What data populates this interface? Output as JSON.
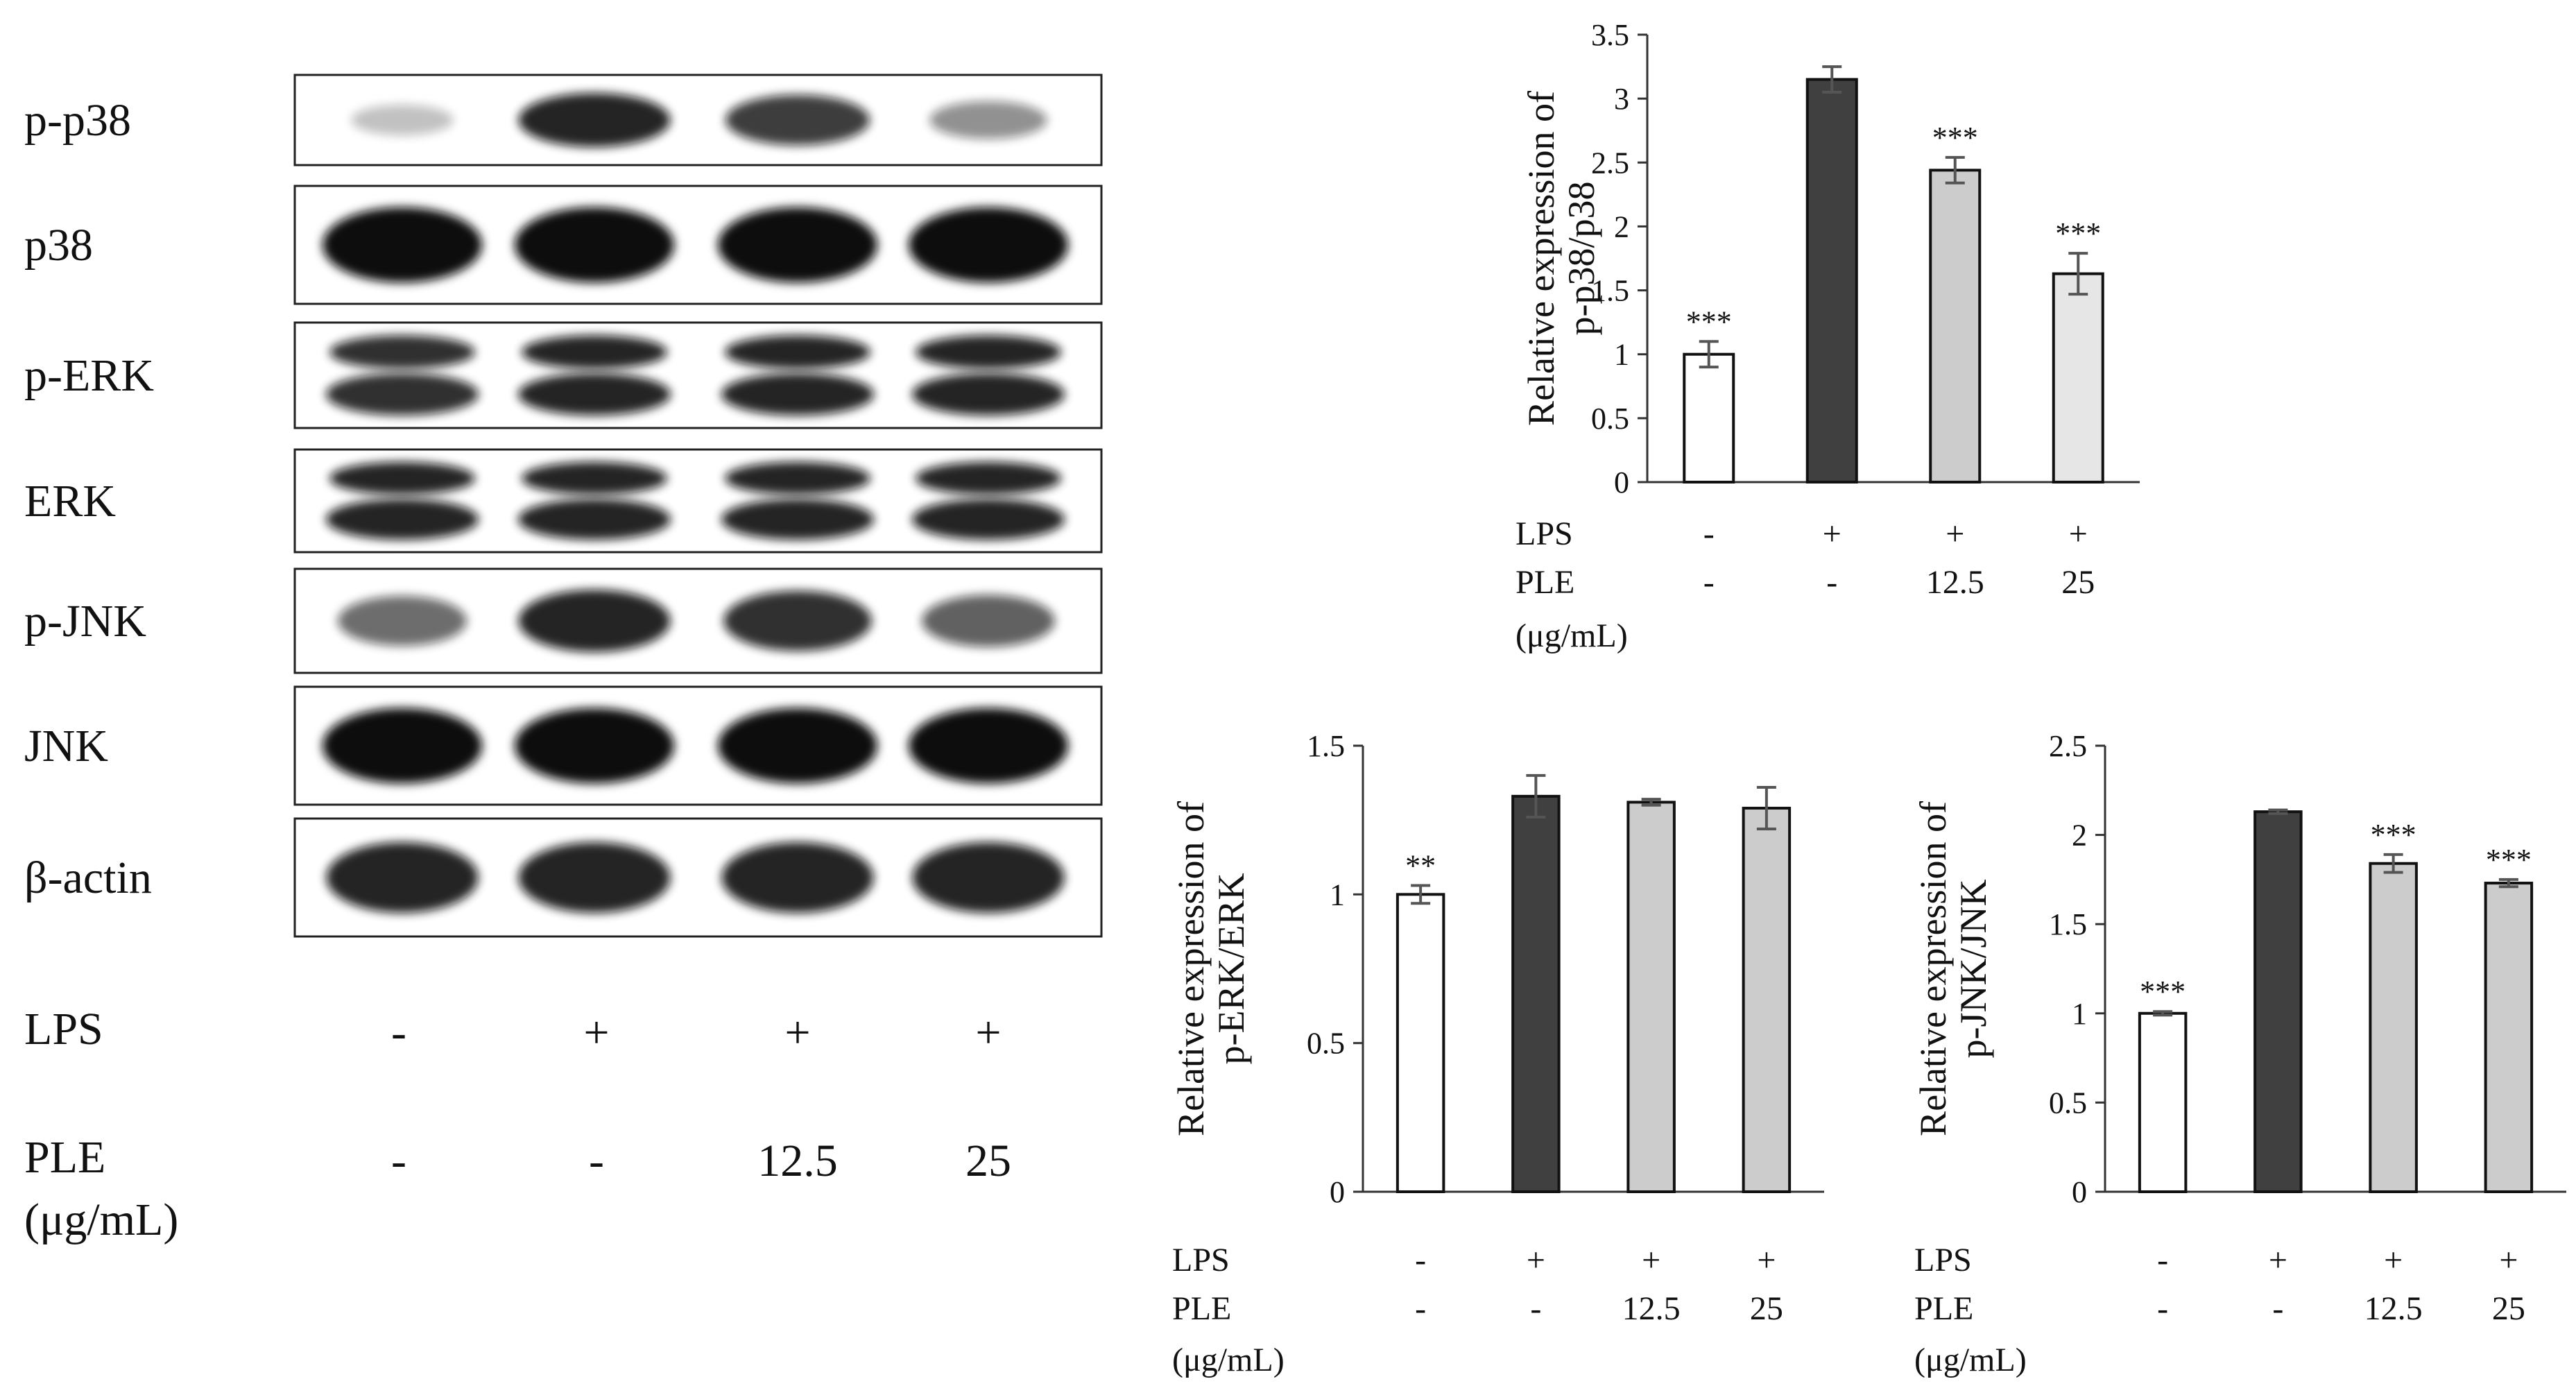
{
  "blot": {
    "rows": [
      {
        "label": "p-p38",
        "band_intensity": [
          0.25,
          0.9,
          0.8,
          0.45
        ],
        "double": false
      },
      {
        "label": "p38",
        "band_intensity": [
          1.0,
          1.0,
          1.0,
          1.0
        ],
        "double": false
      },
      {
        "label": "p-ERK",
        "band_intensity": [
          0.85,
          0.9,
          0.9,
          0.9
        ],
        "double": true
      },
      {
        "label": "ERK",
        "band_intensity": [
          0.9,
          0.9,
          0.9,
          0.9
        ],
        "double": true
      },
      {
        "label": "p-JNK",
        "band_intensity": [
          0.6,
          0.9,
          0.85,
          0.65
        ],
        "double": false
      },
      {
        "label": "JNK",
        "band_intensity": [
          1.0,
          1.0,
          1.0,
          1.0
        ],
        "double": false
      },
      {
        "label": "β-actin",
        "band_intensity": [
          0.9,
          0.9,
          0.9,
          0.9
        ],
        "double": false
      }
    ],
    "conditions": {
      "lps_label": "LPS",
      "ple_label": "PLE",
      "unit_label": "(μg/mL)",
      "lps": [
        "-",
        "+",
        "+",
        "+"
      ],
      "ple": [
        "-",
        "-",
        "12.5",
        "25"
      ]
    }
  },
  "chart_data": [
    {
      "type": "bar",
      "ylabel": [
        "Relative expression of",
        "p-p38/p38"
      ],
      "ylim": [
        0,
        3.5
      ],
      "yticks": [
        0,
        0.5,
        1,
        1.5,
        2,
        2.5,
        3,
        3.5
      ],
      "values": [
        1.0,
        3.15,
        2.44,
        1.63
      ],
      "errors": [
        0.1,
        0.1,
        0.1,
        0.16
      ],
      "significance": [
        "***",
        "",
        "***",
        "***"
      ],
      "colors": [
        "#ffffff",
        "#404040",
        "#cccccc",
        "#e6e6e6"
      ],
      "conditions": {
        "lps_label": "LPS",
        "ple_label": "PLE",
        "unit_label": "(μg/mL)",
        "lps": [
          "-",
          "+",
          "+",
          "+"
        ],
        "ple": [
          "-",
          "-",
          "12.5",
          "25"
        ]
      }
    },
    {
      "type": "bar",
      "ylabel": [
        "Relative expression of",
        "p-ERK/ERK"
      ],
      "ylim": [
        0,
        1.5
      ],
      "yticks": [
        0,
        0.5,
        1,
        1.5
      ],
      "values": [
        1.0,
        1.33,
        1.31,
        1.29
      ],
      "errors": [
        0.03,
        0.07,
        0.01,
        0.07
      ],
      "significance": [
        "**",
        "",
        "",
        ""
      ],
      "colors": [
        "#ffffff",
        "#404040",
        "#cccccc",
        "#cccccc"
      ],
      "conditions": {
        "lps_label": "LPS",
        "ple_label": "PLE",
        "unit_label": "(μg/mL)",
        "lps": [
          "-",
          "+",
          "+",
          "+"
        ],
        "ple": [
          "-",
          "-",
          "12.5",
          "25"
        ]
      }
    },
    {
      "type": "bar",
      "ylabel": [
        "Relative expression of",
        "p-JNK/JNK"
      ],
      "ylim": [
        0,
        2.5
      ],
      "yticks": [
        0,
        0.5,
        1,
        1.5,
        2,
        2.5
      ],
      "values": [
        1.0,
        2.13,
        1.84,
        1.73
      ],
      "errors": [
        0.01,
        0.01,
        0.05,
        0.02
      ],
      "significance": [
        "***",
        "",
        "***",
        "***"
      ],
      "colors": [
        "#ffffff",
        "#404040",
        "#cccccc",
        "#cccccc"
      ],
      "conditions": {
        "lps_label": "LPS",
        "ple_label": "PLE",
        "unit_label": "(μg/mL)",
        "lps": [
          "-",
          "+",
          "+",
          "+"
        ],
        "ple": [
          "-",
          "-",
          "12.5",
          "25"
        ]
      }
    }
  ]
}
